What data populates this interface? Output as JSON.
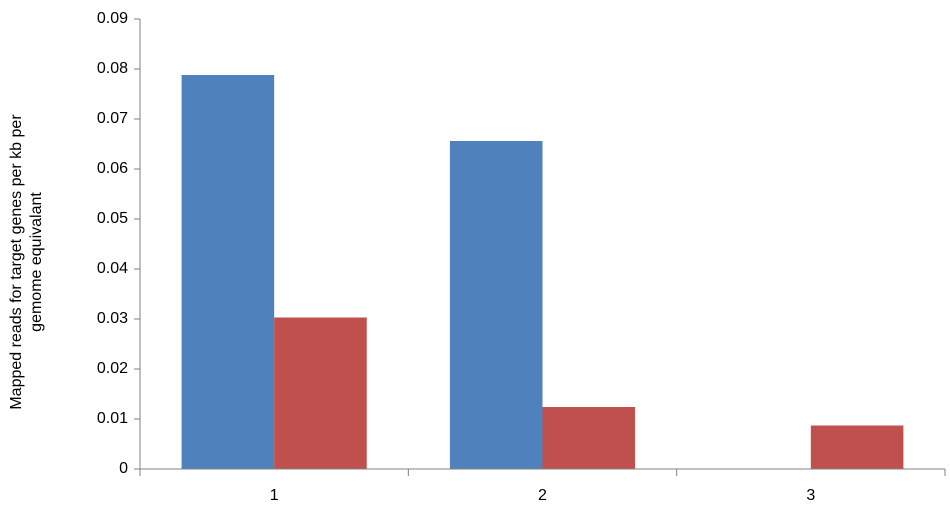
{
  "chart_data": {
    "type": "bar",
    "ylabel": [
      "Mapped reads for target genes per kb per",
      "gemome equivalant"
    ],
    "categories": [
      "1",
      "2",
      "3"
    ],
    "series": [
      {
        "color": "#4f81bd",
        "values": [
          0.0788,
          0.0656,
          0
        ]
      },
      {
        "color": "#c0504d",
        "values": [
          0.0303,
          0.0124,
          0.0087
        ]
      }
    ],
    "ylim": [
      0,
      0.09
    ],
    "yticks": [
      0,
      0.01,
      0.02,
      0.03,
      0.04,
      0.05,
      0.06,
      0.07,
      0.08,
      0.09
    ],
    "grid": false
  }
}
